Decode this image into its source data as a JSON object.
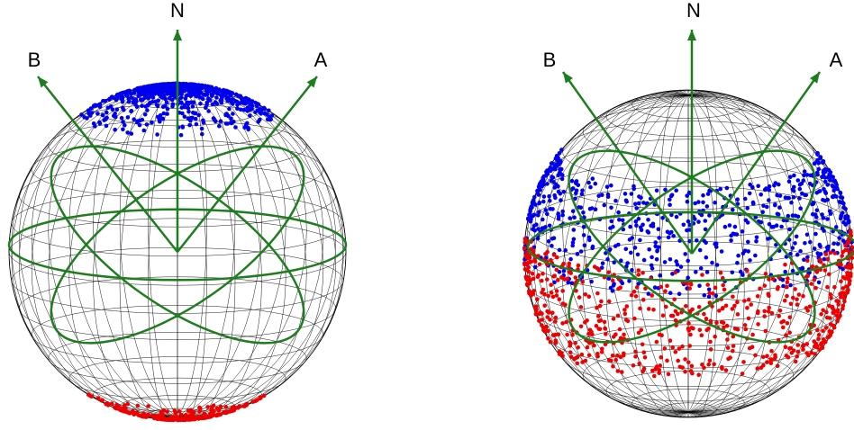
{
  "panels": [
    {
      "labels": {
        "north": "N",
        "b": "B",
        "a": "A"
      }
    },
    {
      "labels": {
        "north": "N",
        "b": "B",
        "a": "A"
      }
    }
  ]
}
